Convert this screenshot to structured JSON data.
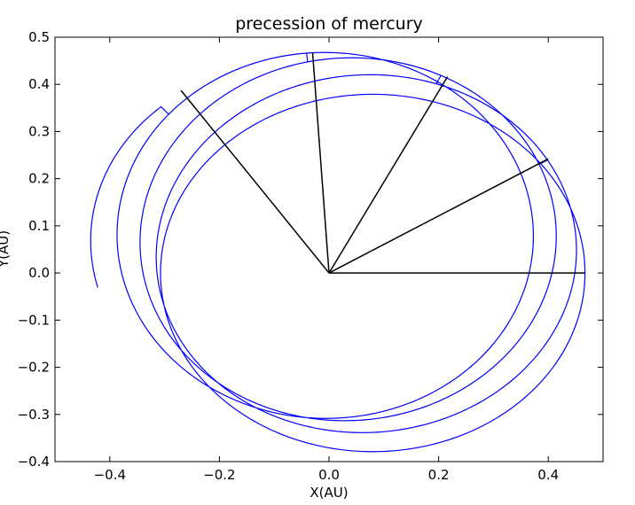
{
  "chart_data": {
    "type": "line",
    "title": "precession of mercury",
    "xlabel": "X(AU)",
    "ylabel": "Y(AU)",
    "xlim": [
      -0.5,
      0.5
    ],
    "ylim": [
      -0.4,
      0.5
    ],
    "xticks": [
      -0.4,
      -0.2,
      0.0,
      0.2,
      0.4
    ],
    "xtick_labels": [
      "−0.4",
      "−0.2",
      "0.0",
      "0.2",
      "0.4"
    ],
    "yticks": [
      -0.4,
      -0.3,
      -0.2,
      -0.1,
      0.0,
      0.1,
      0.2,
      0.3,
      0.4,
      0.5
    ],
    "ytick_labels": [
      "−0.4",
      "−0.3",
      "−0.2",
      "−0.1",
      "0.0",
      "0.1",
      "0.2",
      "0.3",
      "0.4",
      "0.5"
    ],
    "grid": false,
    "legend": "none",
    "series": [
      {
        "kind": "orbit-spiral",
        "color": "#0000ff",
        "orbits": [
          {
            "perihelion_angle_deg": 180,
            "aphelion_distance": 0.467,
            "eccentricity": 0.206
          },
          {
            "perihelion_angle_deg": 211,
            "aphelion_distance": 0.465,
            "eccentricity": 0.206
          },
          {
            "perihelion_angle_deg": 244,
            "aphelion_distance": 0.466,
            "eccentricity": 0.206
          },
          {
            "perihelion_angle_deg": 275,
            "aphelion_distance": 0.468,
            "eccentricity": 0.206
          },
          {
            "perihelion_angle_deg": 311,
            "aphelion_distance": 0.467,
            "eccentricity": 0.206
          }
        ],
        "end_point": [
          -0.41,
          -0.03
        ]
      },
      {
        "kind": "perihelion-vectors",
        "color": "#000000",
        "segments": [
          {
            "from": [
              0,
              0
            ],
            "to": [
              0.467,
              0.0
            ]
          },
          {
            "from": [
              0,
              0
            ],
            "to": [
              0.4,
              0.242
            ]
          },
          {
            "from": [
              0,
              0
            ],
            "to": [
              0.216,
              0.416
            ]
          },
          {
            "from": [
              0,
              0
            ],
            "to": [
              -0.03,
              0.468
            ]
          },
          {
            "from": [
              0,
              0
            ],
            "to": [
              -0.27,
              0.387
            ]
          }
        ]
      }
    ]
  }
}
